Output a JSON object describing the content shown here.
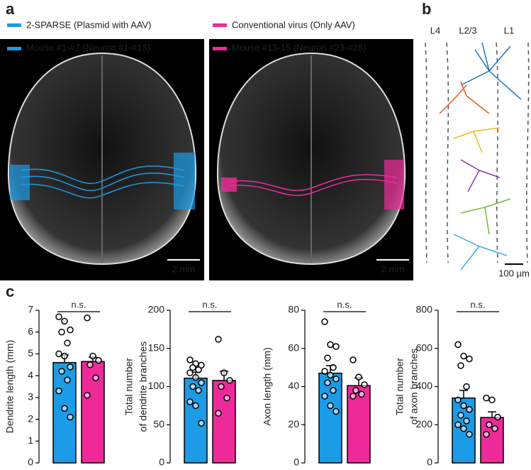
{
  "figure": {
    "panel_a": "a",
    "panel_b": "b",
    "panel_c": "c",
    "legend": [
      {
        "label": "2-SPARSE (Plasmid with AAV)",
        "color": "#1c9be6"
      },
      {
        "label": "Conventional virus (Only AAV)",
        "color": "#ee2a9a"
      }
    ],
    "image_labels": [
      "Mouse #1-#7 (Neuron #1-#13)",
      "Mouse #13-15 (Neuron #23-#28)"
    ],
    "scale_bars": [
      "2 mm",
      "2 mm",
      "100 µm"
    ],
    "layers": [
      "L4",
      "L2/3",
      "L1"
    ]
  },
  "chart_data": [
    {
      "type": "bar",
      "ylabel": [
        "Dendrite length (mm)"
      ],
      "annotation": "n.s.",
      "categories": [
        null,
        null
      ],
      "colors": [
        "#1c9be6",
        "#ee2a9a"
      ],
      "values": [
        4.6,
        4.65
      ],
      "errors": [
        0.35,
        0.2
      ],
      "points": [
        [
          6.7,
          6.5,
          6.1,
          6.0,
          5.5,
          5.0,
          4.9,
          4.4,
          4.2,
          3.8,
          3.3,
          2.5,
          2.1
        ],
        [
          6.65,
          4.9,
          4.7,
          4.5,
          3.9,
          3.1
        ]
      ],
      "ylim": [
        0,
        7
      ],
      "yticks": [
        0,
        1,
        2,
        3,
        4,
        5,
        6,
        7
      ]
    },
    {
      "type": "bar",
      "ylabel": [
        "Total number",
        "of dendrite branches"
      ],
      "annotation": "n.s.",
      "categories": [
        null,
        null
      ],
      "colors": [
        "#1c9be6",
        "#ee2a9a"
      ],
      "values": [
        111,
        108
      ],
      "errors": [
        8,
        12
      ],
      "points": [
        [
          135,
          130,
          128,
          125,
          122,
          118,
          112,
          105,
          100,
          95,
          80,
          75,
          52
        ],
        [
          162,
          118,
          108,
          100,
          85,
          65
        ]
      ],
      "ylim": [
        0,
        200
      ],
      "yticks": [
        0,
        50,
        100,
        150,
        200
      ]
    },
    {
      "type": "bar",
      "ylabel": [
        "Axon length (mm)"
      ],
      "annotation": "n.s.",
      "categories": [
        null,
        null
      ],
      "colors": [
        "#1c9be6",
        "#ee2a9a"
      ],
      "values": [
        47,
        40.5
      ],
      "errors": [
        4,
        4
      ],
      "points": [
        [
          74,
          62,
          61,
          55,
          50,
          48,
          46,
          44,
          42,
          38,
          35,
          30,
          27
        ],
        [
          54,
          45,
          41,
          38,
          36,
          35
        ]
      ],
      "ylim": [
        0,
        80
      ],
      "yticks": [
        0,
        20,
        40,
        60,
        80
      ]
    },
    {
      "type": "bar",
      "ylabel": [
        "Total number",
        "of axon branches"
      ],
      "annotation": "n.s.",
      "categories": [
        null,
        null
      ],
      "colors": [
        "#1c9be6",
        "#ee2a9a"
      ],
      "values": [
        340,
        238
      ],
      "errors": [
        40,
        30
      ],
      "points": [
        [
          620,
          560,
          545,
          510,
          400,
          330,
          300,
          280,
          250,
          220,
          200,
          180,
          150
        ],
        [
          340,
          330,
          240,
          200,
          180,
          150
        ]
      ],
      "ylim": [
        0,
        800
      ],
      "yticks": [
        0,
        200,
        400,
        600,
        800
      ]
    }
  ]
}
